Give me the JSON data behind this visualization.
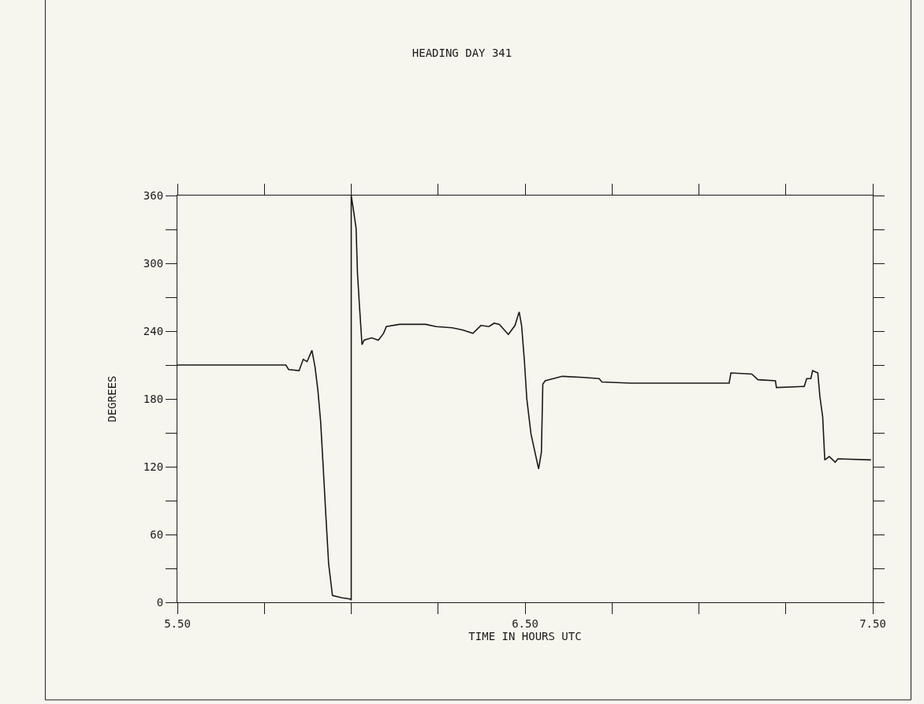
{
  "chart_data": {
    "type": "line",
    "title": "HEADING DAY 341",
    "xlabel": "TIME IN HOURS UTC",
    "ylabel": "DEGREES",
    "x": [
      5.5,
      5.812,
      5.82,
      5.85,
      5.862,
      5.873,
      5.887,
      5.896,
      5.904,
      5.912,
      5.919,
      5.927,
      5.935,
      5.946,
      5.973,
      5.996,
      6.0,
      6.0,
      6.006,
      6.014,
      6.018,
      6.024,
      6.031,
      6.037,
      6.059,
      6.078,
      6.093,
      6.101,
      6.139,
      6.214,
      6.244,
      6.29,
      6.32,
      6.35,
      6.373,
      6.396,
      6.411,
      6.426,
      6.452,
      6.471,
      6.483,
      6.49,
      6.498,
      6.505,
      6.517,
      6.539,
      6.547,
      6.551,
      6.558,
      6.607,
      6.668,
      6.713,
      6.721,
      6.804,
      6.811,
      7.087,
      7.092,
      7.152,
      7.17,
      7.22,
      7.223,
      7.303,
      7.31,
      7.322,
      7.327,
      7.342,
      7.348,
      7.356,
      7.362,
      7.375,
      7.392,
      7.4,
      7.495
    ],
    "series": [
      {
        "color": "#1a1a1a",
        "values": [
          210,
          210,
          206,
          205,
          215,
          213,
          223,
          208,
          188,
          160,
          122,
          77,
          34,
          6,
          4,
          3,
          2,
          360,
          348,
          331,
          291,
          261,
          228,
          232,
          234,
          232,
          238,
          244,
          246,
          246,
          244,
          243,
          241,
          238,
          245,
          244,
          247,
          246,
          237,
          245,
          257,
          245,
          214,
          180,
          149,
          118,
          133,
          193,
          196,
          200,
          199,
          198,
          195,
          194,
          194,
          194,
          203,
          202,
          197,
          196,
          190,
          191,
          198,
          198,
          205,
          203,
          182,
          164,
          126,
          129,
          124,
          127,
          126
        ]
      }
    ],
    "xlim": [
      5.5,
      7.5
    ],
    "ylim": [
      0,
      360
    ],
    "xticks": [
      {
        "value": 5.5,
        "label": "5.50"
      },
      {
        "value": 5.75,
        "label": null
      },
      {
        "value": 6.0,
        "label": null
      },
      {
        "value": 6.25,
        "label": null
      },
      {
        "value": 6.5,
        "label": "6.50"
      },
      {
        "value": 6.75,
        "label": null
      },
      {
        "value": 7.0,
        "label": null
      },
      {
        "value": 7.25,
        "label": null
      },
      {
        "value": 7.5,
        "label": "7.50"
      }
    ],
    "yticks": [
      0,
      {
        "value": 30,
        "label": null
      },
      60,
      {
        "value": 90,
        "label": null
      },
      120,
      {
        "value": 150,
        "label": null
      },
      180,
      {
        "value": 210,
        "label": null
      },
      240,
      {
        "value": 270,
        "label": null
      },
      300,
      {
        "value": 330,
        "label": null
      },
      360
    ],
    "grid": false,
    "legend": false,
    "marker": "none",
    "line_style": "solid"
  }
}
